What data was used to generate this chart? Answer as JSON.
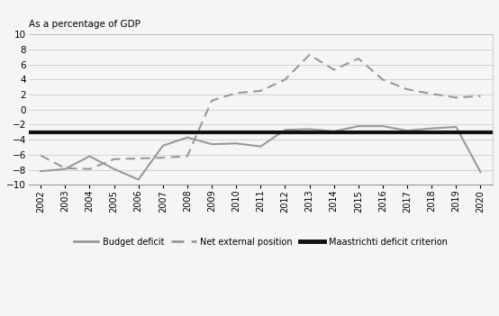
{
  "years": [
    2002,
    2003,
    2004,
    2005,
    2006,
    2007,
    2008,
    2009,
    2010,
    2011,
    2012,
    2013,
    2014,
    2015,
    2016,
    2017,
    2018,
    2019,
    2020
  ],
  "budget_deficit": [
    -8.2,
    -7.9,
    -6.2,
    -7.9,
    -9.3,
    -4.8,
    -3.7,
    -4.6,
    -4.5,
    -4.9,
    -2.7,
    -2.6,
    -2.9,
    -2.2,
    -2.2,
    -2.8,
    -2.5,
    -2.3,
    -8.3
  ],
  "net_external": [
    -6.1,
    -7.8,
    -7.9,
    -6.6,
    -6.5,
    -6.4,
    -6.2,
    1.2,
    2.2,
    2.5,
    4.0,
    7.3,
    5.3,
    6.8,
    4.0,
    2.7,
    2.1,
    1.6,
    1.8
  ],
  "maastricht": -3.0,
  "ylim": [
    -10,
    10
  ],
  "yticks": [
    -10,
    -8,
    -6,
    -4,
    -2,
    0,
    2,
    4,
    6,
    8,
    10
  ],
  "line_color": "#999999",
  "net_external_color": "#999999",
  "maastricht_color": "#111111",
  "background_color": "#f5f5f5",
  "plot_bg_color": "#f5f5f5",
  "title": "As a percentage of GDP",
  "legend_budget": "Budget deficit",
  "legend_net": "Net external position",
  "legend_maastricht": "Maastrichti deficit criterion"
}
